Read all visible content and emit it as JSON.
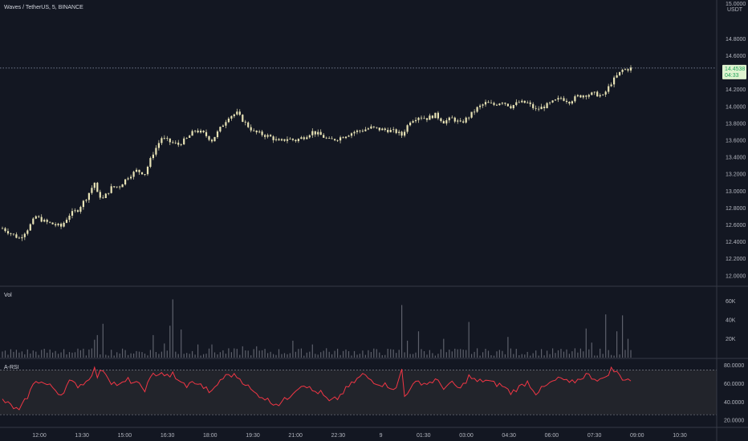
{
  "chart_data": [
    {
      "type": "candlestick",
      "title": "Waves / TetherUS, 5, BINANCE",
      "currency": "USDT",
      "y_ticks": [
        "14.8000",
        "14.6000",
        "14.4000",
        "14.2000",
        "14.0000",
        "13.8000",
        "13.6000",
        "13.4000",
        "13.2000",
        "13.0000",
        "12.8000",
        "12.6000",
        "12.4000",
        "12.2000",
        "12.0000"
      ],
      "y_tick_values": [
        14.8,
        14.6,
        14.4,
        14.2,
        14.0,
        13.8,
        13.6,
        13.4,
        13.2,
        13.0,
        12.8,
        12.6,
        12.4,
        12.2,
        12.0
      ],
      "ylim": [
        11.96,
        15.05
      ],
      "top_label": "15.0000",
      "last_price": {
        "value": 14.4538,
        "label": "14.4538",
        "countdown": "04:33"
      },
      "x_ticks": [
        "12:00",
        "13:30",
        "15:00",
        "16:30",
        "18:00",
        "19:30",
        "21:00",
        "22:30",
        "9",
        "01:30",
        "03:00",
        "04:30",
        "06:00",
        "07:30",
        "09:00",
        "10:30"
      ],
      "close_keypoints": [
        [
          0,
          12.56
        ],
        [
          3,
          12.5
        ],
        [
          6,
          12.44
        ],
        [
          9,
          12.55
        ],
        [
          12,
          12.7
        ],
        [
          15,
          12.64
        ],
        [
          18,
          12.61
        ],
        [
          21,
          12.58
        ],
        [
          24,
          12.72
        ],
        [
          27,
          12.78
        ],
        [
          30,
          12.92
        ],
        [
          33,
          13.1
        ],
        [
          34,
          12.97
        ],
        [
          36,
          12.91
        ],
        [
          39,
          13.04
        ],
        [
          42,
          13.06
        ],
        [
          45,
          13.17
        ],
        [
          48,
          13.24
        ],
        [
          51,
          13.21
        ],
        [
          54,
          13.45
        ],
        [
          57,
          13.63
        ],
        [
          60,
          13.58
        ],
        [
          63,
          13.55
        ],
        [
          66,
          13.62
        ],
        [
          69,
          13.72
        ],
        [
          72,
          13.68
        ],
        [
          75,
          13.6
        ],
        [
          78,
          13.74
        ],
        [
          81,
          13.88
        ],
        [
          84,
          13.92
        ],
        [
          87,
          13.8
        ],
        [
          90,
          13.7
        ],
        [
          93,
          13.67
        ],
        [
          96,
          13.64
        ],
        [
          99,
          13.58
        ],
        [
          102,
          13.62
        ],
        [
          105,
          13.6
        ],
        [
          108,
          13.64
        ],
        [
          111,
          13.7
        ],
        [
          114,
          13.66
        ],
        [
          117,
          13.6
        ],
        [
          120,
          13.62
        ],
        [
          123,
          13.66
        ],
        [
          126,
          13.7
        ],
        [
          129,
          13.72
        ],
        [
          132,
          13.75
        ],
        [
          135,
          13.73
        ],
        [
          138,
          13.72
        ],
        [
          141,
          13.7
        ],
        [
          143,
          13.66
        ],
        [
          146,
          13.83
        ],
        [
          149,
          13.88
        ],
        [
          152,
          13.86
        ],
        [
          155,
          13.9
        ],
        [
          158,
          13.82
        ],
        [
          161,
          13.86
        ],
        [
          164,
          13.8
        ],
        [
          167,
          13.88
        ],
        [
          170,
          13.98
        ],
        [
          173,
          14.04
        ],
        [
          176,
          14.02
        ],
        [
          179,
          14.06
        ],
        [
          182,
          14.0
        ],
        [
          185,
          14.05
        ],
        [
          188,
          14.04
        ],
        [
          191,
          13.96
        ],
        [
          194,
          14.0
        ],
        [
          197,
          14.05
        ],
        [
          200,
          14.1
        ],
        [
          203,
          14.06
        ],
        [
          206,
          14.12
        ],
        [
          209,
          14.14
        ],
        [
          212,
          14.15
        ],
        [
          215,
          14.12
        ],
        [
          218,
          14.28
        ],
        [
          220,
          14.36
        ],
        [
          222,
          14.43
        ],
        [
          225,
          14.45
        ]
      ],
      "candle_count": 226
    },
    {
      "type": "bar",
      "title": "Vol",
      "y_ticks": [
        "60K",
        "40K",
        "20K"
      ],
      "y_tick_values": [
        60000,
        40000,
        20000
      ],
      "ylim": [
        0,
        70000
      ],
      "spikes": [
        [
          0,
          6500
        ],
        [
          22,
          9000
        ],
        [
          33,
          19000
        ],
        [
          34,
          24000
        ],
        [
          36,
          36000
        ],
        [
          54,
          24000
        ],
        [
          58,
          15000
        ],
        [
          60,
          34000
        ],
        [
          61,
          62000
        ],
        [
          64,
          30000
        ],
        [
          70,
          14000
        ],
        [
          75,
          14000
        ],
        [
          86,
          12000
        ],
        [
          91,
          12000
        ],
        [
          104,
          18000
        ],
        [
          111,
          14000
        ],
        [
          116,
          10000
        ],
        [
          143,
          56000
        ],
        [
          145,
          18000
        ],
        [
          149,
          28000
        ],
        [
          158,
          20000
        ],
        [
          167,
          38000
        ],
        [
          181,
          22000
        ],
        [
          209,
          31000
        ],
        [
          211,
          16000
        ],
        [
          216,
          46000
        ],
        [
          220,
          28000
        ],
        [
          222,
          45000
        ],
        [
          224,
          20000
        ]
      ]
    },
    {
      "type": "line",
      "title": "A-RSI",
      "y_ticks": [
        "80.0000",
        "60.0000",
        "40.0000",
        "20.0000"
      ],
      "y_tick_values": [
        80,
        60,
        40,
        20
      ],
      "ylim": [
        13,
        85
      ],
      "band": [
        26,
        75
      ],
      "keypoints": [
        [
          0,
          42
        ],
        [
          3,
          36
        ],
        [
          6,
          30
        ],
        [
          9,
          46
        ],
        [
          12,
          64
        ],
        [
          15,
          60
        ],
        [
          18,
          56
        ],
        [
          21,
          48
        ],
        [
          24,
          62
        ],
        [
          27,
          58
        ],
        [
          30,
          62
        ],
        [
          33,
          76
        ],
        [
          34,
          68
        ],
        [
          36,
          76
        ],
        [
          39,
          62
        ],
        [
          42,
          58
        ],
        [
          45,
          64
        ],
        [
          48,
          60
        ],
        [
          51,
          54
        ],
        [
          54,
          70
        ],
        [
          57,
          72
        ],
        [
          60,
          66
        ],
        [
          61,
          72
        ],
        [
          63,
          62
        ],
        [
          66,
          58
        ],
        [
          69,
          62
        ],
        [
          72,
          56
        ],
        [
          75,
          50
        ],
        [
          78,
          64
        ],
        [
          81,
          70
        ],
        [
          84,
          68
        ],
        [
          87,
          60
        ],
        [
          90,
          50
        ],
        [
          93,
          46
        ],
        [
          96,
          40
        ],
        [
          99,
          38
        ],
        [
          102,
          44
        ],
        [
          105,
          54
        ],
        [
          108,
          60
        ],
        [
          111,
          52
        ],
        [
          114,
          50
        ],
        [
          117,
          40
        ],
        [
          120,
          44
        ],
        [
          123,
          54
        ],
        [
          126,
          62
        ],
        [
          129,
          70
        ],
        [
          132,
          64
        ],
        [
          135,
          60
        ],
        [
          138,
          58
        ],
        [
          141,
          54
        ],
        [
          143,
          76
        ],
        [
          144,
          46
        ],
        [
          146,
          56
        ],
        [
          149,
          62
        ],
        [
          152,
          60
        ],
        [
          155,
          64
        ],
        [
          158,
          56
        ],
        [
          161,
          60
        ],
        [
          164,
          54
        ],
        [
          167,
          68
        ],
        [
          170,
          62
        ],
        [
          173,
          64
        ],
        [
          176,
          60
        ],
        [
          179,
          58
        ],
        [
          182,
          50
        ],
        [
          185,
          56
        ],
        [
          188,
          62
        ],
        [
          191,
          50
        ],
        [
          194,
          56
        ],
        [
          197,
          62
        ],
        [
          200,
          66
        ],
        [
          203,
          60
        ],
        [
          206,
          64
        ],
        [
          209,
          70
        ],
        [
          212,
          66
        ],
        [
          215,
          64
        ],
        [
          218,
          76
        ],
        [
          220,
          72
        ],
        [
          222,
          66
        ],
        [
          225,
          64
        ]
      ],
      "color": "#f23645"
    }
  ],
  "colors": {
    "background": "#131722",
    "grid": "#363a45",
    "text": "#b2b5be",
    "candle": "#e8e3b6",
    "volume": "#5d606b",
    "rsi": "#f23645",
    "rsi_band_fill": "#22242b",
    "price_badge_bg": "#dff3d0",
    "price_badge_text": "#26a65b"
  }
}
